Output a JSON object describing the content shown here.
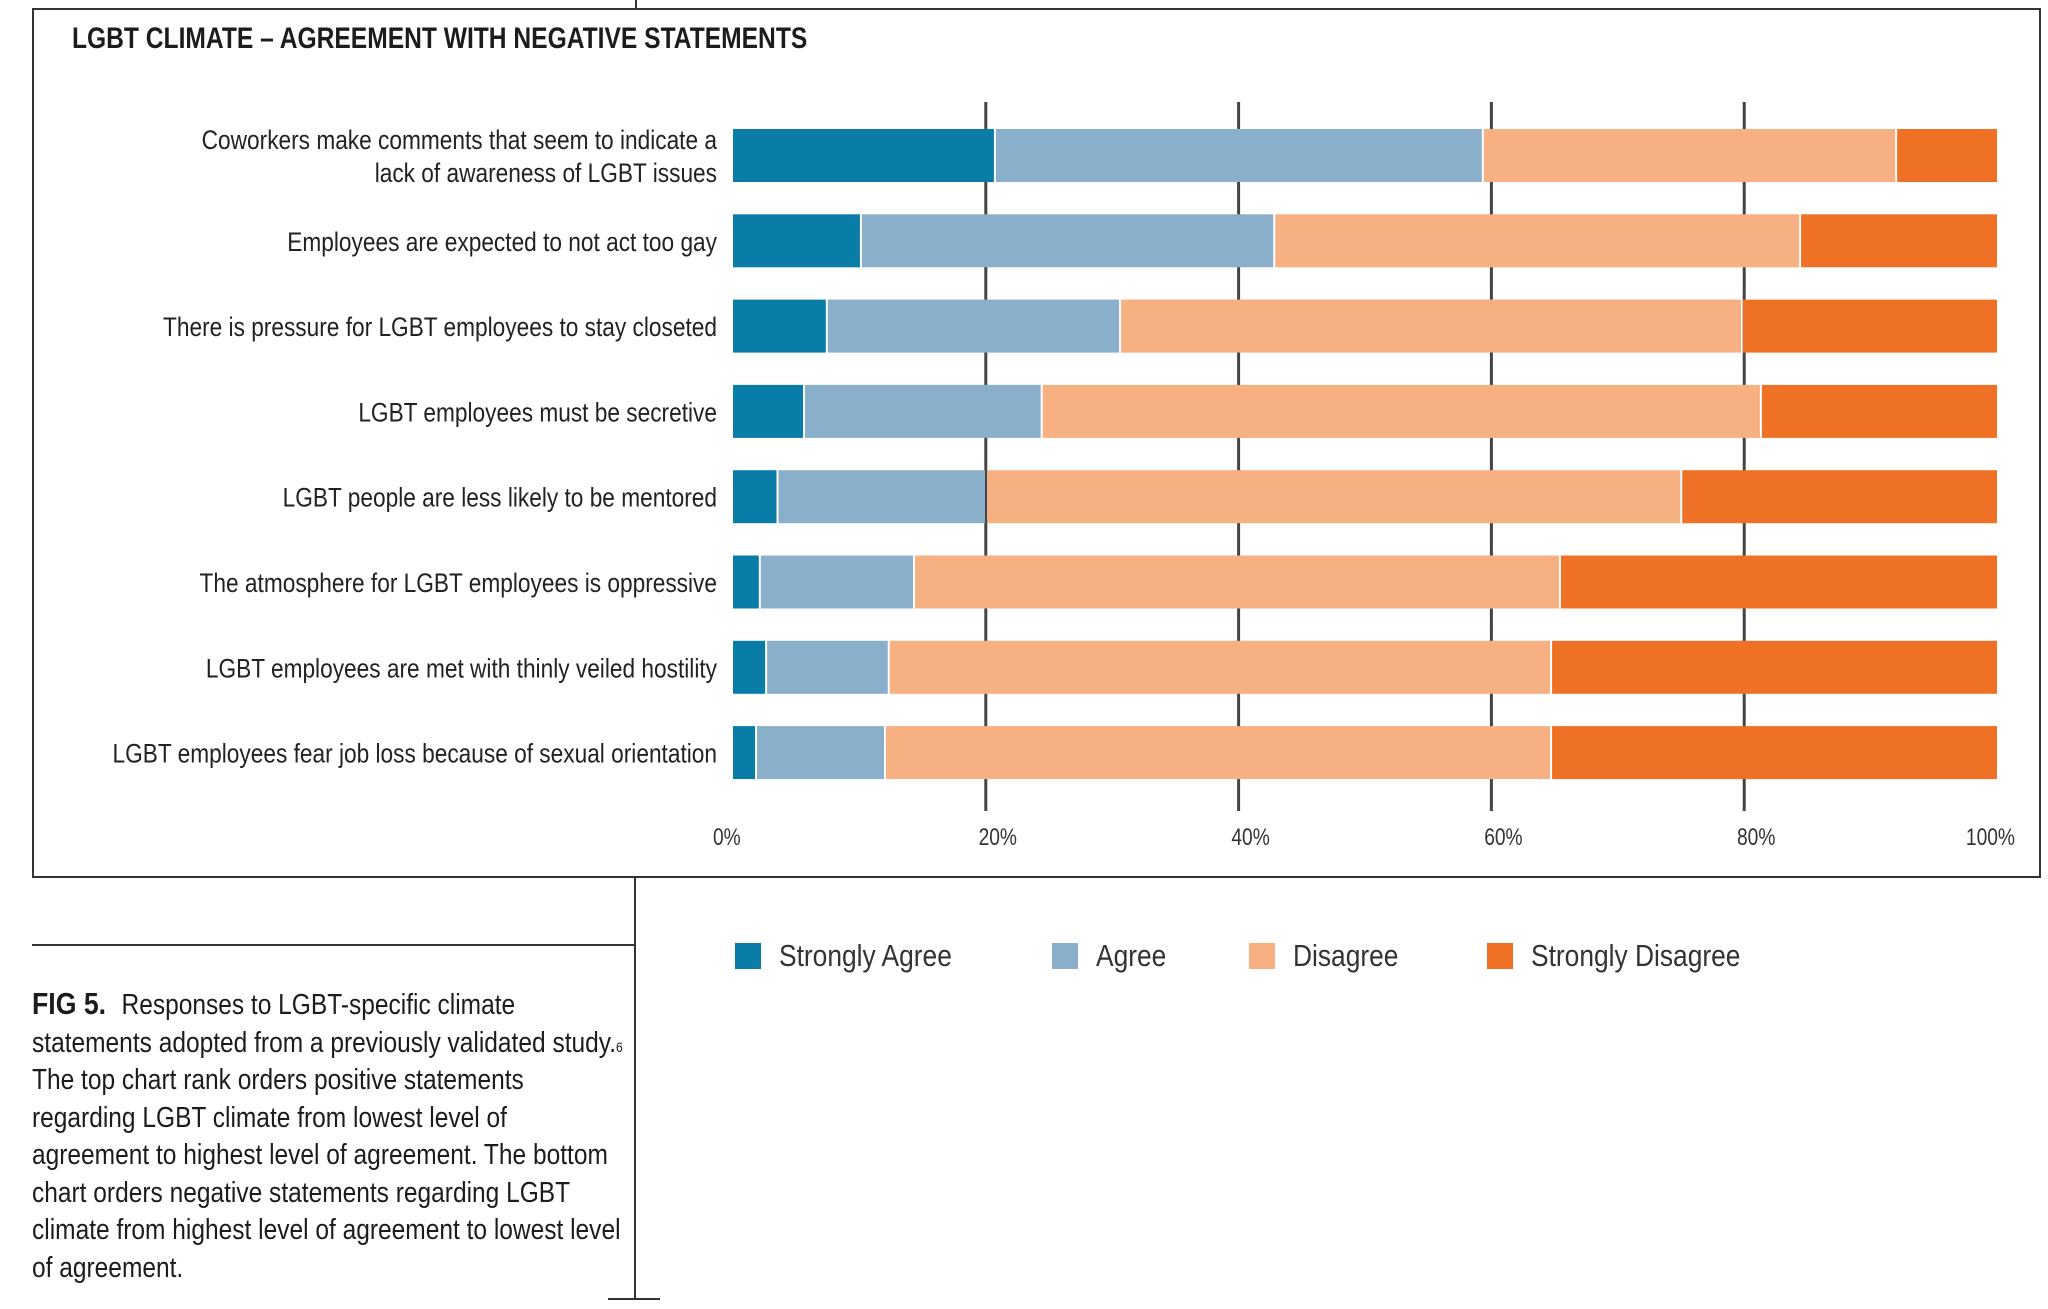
{
  "figure": {
    "label": "FIG 5.",
    "caption_parts": {
      "before_ref": "Responses to LGBT-specific climate statements adopted from a previously validated study.",
      "ref": "6",
      "after_ref": " The top chart rank orders positive statements regarding LGBT climate from lowest level of agreement to highest level of agreement. The bottom chart orders negative statements regarding LGBT climate from highest level of agreement to lowest level of agreement."
    }
  },
  "chart_data": {
    "type": "bar",
    "orientation": "horizontal",
    "stacked": true,
    "normalized": true,
    "title": "LGBT CLIMATE – AGREEMENT WITH NEGATIVE STATEMENTS",
    "xlabel": "",
    "ylabel": "",
    "xlim": [
      0,
      100
    ],
    "x_ticks": [
      "0%",
      "20%",
      "40%",
      "60%",
      "80%",
      "100%"
    ],
    "x_tick_values": [
      0,
      20,
      40,
      60,
      80,
      100
    ],
    "grid": "vertical at 20% intervals",
    "legend_position": "bottom",
    "categories": [
      [
        "Coworkers make comments that seem to indicate a",
        "lack of awareness of LGBT issues"
      ],
      [
        "Employees are expected to not act too gay"
      ],
      [
        "There is pressure for LGBT employees to stay closeted"
      ],
      [
        "LGBT employees must be secretive"
      ],
      [
        "LGBT people are less likely to be mentored"
      ],
      [
        "The atmosphere for LGBT employees is oppressive"
      ],
      [
        "LGBT employees are met with thinly veiled hostility"
      ],
      [
        "LGBT employees fear job loss because of sexual orientation"
      ]
    ],
    "series": [
      {
        "name": "Strongly Agree",
        "color": "#0a7ca8",
        "values": [
          20.8,
          10.2,
          7.5,
          5.7,
          3.6,
          2.2,
          2.7,
          1.9
        ]
      },
      {
        "name": "Agree",
        "color": "#8aafca",
        "values": [
          38.6,
          32.7,
          23.2,
          18.8,
          16.5,
          12.2,
          9.7,
          10.2
        ]
      },
      {
        "name": "Disagree",
        "color": "#f6b081",
        "values": [
          32.7,
          41.6,
          49.2,
          56.9,
          55.0,
          51.1,
          52.4,
          52.7
        ]
      },
      {
        "name": "Strongly Disagree",
        "color": "#ef7126",
        "values": [
          7.9,
          15.5,
          20.1,
          18.6,
          24.9,
          34.5,
          35.2,
          35.2
        ]
      }
    ]
  }
}
